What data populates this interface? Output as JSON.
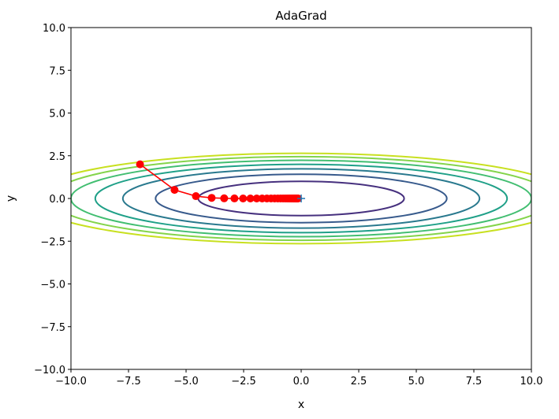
{
  "chart_data": {
    "type": "line",
    "title": "AdaGrad",
    "xlabel": "x",
    "ylabel": "y",
    "xlim": [
      -10,
      10
    ],
    "ylim": [
      -10,
      10
    ],
    "xticks": [
      "−10.0",
      "−7.5",
      "−5.0",
      "−2.5",
      "0.0",
      "2.5",
      "5.0",
      "7.5",
      "10.0"
    ],
    "yticks": [
      "10.0",
      "7.5",
      "5.0",
      "2.5",
      "0.0",
      "−2.5",
      "−5.0",
      "−7.5",
      "−10.0"
    ],
    "xtick_values": [
      -10,
      -7.5,
      -5,
      -2.5,
      0,
      2.5,
      5,
      7.5,
      10
    ],
    "ytick_values": [
      10,
      7.5,
      5,
      2.5,
      0,
      -2.5,
      -5,
      -7.5,
      -10
    ],
    "grid": false,
    "contour": {
      "function": "x^2/20 + y^2",
      "levels": [
        1,
        2,
        3,
        4,
        5,
        6,
        7
      ],
      "colors": [
        "#46307e",
        "#375a8c",
        "#29798e",
        "#1fa088",
        "#42be71",
        "#84d44b",
        "#c8e020"
      ]
    },
    "path": {
      "color": "#ff0000",
      "marker": "circle",
      "x": [
        -7,
        -5.5,
        -4.573,
        -3.888,
        -3.345,
        -2.899,
        -2.524,
        -2.206,
        -1.932,
        -1.695,
        -1.489,
        -1.31,
        -1.153,
        -1.015,
        -0.894,
        -0.788,
        -0.695,
        -0.613,
        -0.54,
        -0.477,
        -0.42,
        -0.371,
        -0.327,
        -0.289,
        -0.255,
        -0.225,
        -0.198,
        -0.175,
        -0.154,
        -0.136
      ],
      "y": [
        2,
        0.5,
        0.136,
        0.037,
        0.01,
        0.003,
        0.001,
        0,
        0,
        0,
        0,
        0,
        0,
        0,
        0,
        0,
        0,
        0,
        0,
        0,
        0,
        0,
        0,
        0,
        0,
        0,
        0,
        0,
        0,
        0
      ]
    },
    "minimum_marker": {
      "x": 0,
      "y": 0,
      "marker": "+",
      "color": "#1f77b4"
    }
  }
}
